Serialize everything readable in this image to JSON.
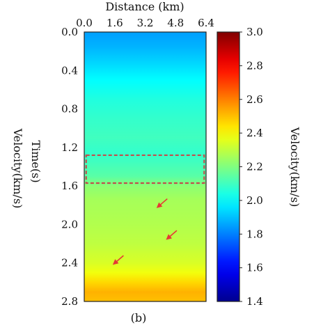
{
  "chart_data": {
    "type": "heatmap",
    "panel_label": "(b)",
    "x_axis": {
      "label": "Distance (km)",
      "position": "top",
      "ticks": [
        "0.0",
        "1.6",
        "3.2",
        "4.8",
        "6.4"
      ],
      "tick_values": [
        0.0,
        1.6,
        3.2,
        4.8,
        6.4
      ],
      "range": [
        0.0,
        6.4
      ]
    },
    "y_axis": {
      "label": "Time(s)",
      "outer_label": "Velocity(km/s)",
      "ticks": [
        "0.0",
        "0.4",
        "0.8",
        "1.2",
        "1.6",
        "2.0",
        "2.4",
        "2.8"
      ],
      "tick_values": [
        0.0,
        0.4,
        0.8,
        1.2,
        1.6,
        2.0,
        2.4,
        2.8
      ],
      "range": [
        0.0,
        2.8
      ],
      "inverted": true
    },
    "colorbar": {
      "label": "Velocity(km/s)",
      "ticks": [
        "3.0",
        "2.8",
        "2.6",
        "2.4",
        "2.2",
        "2.0",
        "1.8",
        "1.6",
        "1.4"
      ],
      "tick_values": [
        3.0,
        2.8,
        2.6,
        2.4,
        2.2,
        2.0,
        1.8,
        1.6,
        1.4
      ],
      "range": [
        1.4,
        3.0
      ],
      "colormap": "jet"
    },
    "velocity_profile": {
      "time_s": [
        0.0,
        0.15,
        0.3,
        0.5,
        0.7,
        0.9,
        1.1,
        1.25,
        1.35,
        1.5,
        1.6,
        1.75,
        2.0,
        2.2,
        2.4,
        2.5,
        2.6,
        2.7,
        2.8
      ],
      "velocity_kms": [
        1.85,
        1.88,
        1.93,
        2.0,
        2.05,
        2.08,
        2.1,
        2.08,
        2.1,
        2.14,
        2.22,
        2.26,
        2.28,
        2.3,
        2.34,
        2.38,
        2.46,
        2.52,
        2.5
      ]
    },
    "annotations": {
      "highlight_box": {
        "x_range_km": [
          0.1,
          6.3
        ],
        "time_range_s": [
          1.28,
          1.57
        ],
        "color": "#c0504d",
        "style": "dashed"
      },
      "arrows": [
        {
          "tip_km": 3.85,
          "tip_s": 1.82,
          "color": "#e53935"
        },
        {
          "tip_km": 4.35,
          "tip_s": 2.15,
          "color": "#e53935"
        },
        {
          "tip_km": 1.55,
          "tip_s": 2.41,
          "color": "#e53935"
        }
      ]
    }
  }
}
